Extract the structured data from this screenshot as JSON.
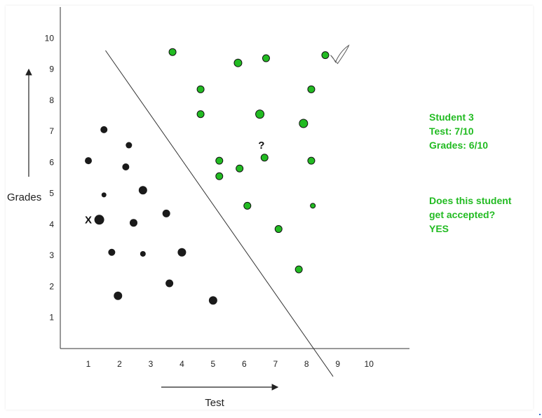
{
  "chart_data": {
    "type": "scatter",
    "title": "",
    "xlabel": "Test",
    "ylabel": "Grades",
    "xlim": [
      0.1,
      11.3
    ],
    "ylim": [
      0.0,
      11.0
    ],
    "x_ticks": [
      1,
      2,
      3,
      4,
      5,
      6,
      7,
      8,
      9,
      10
    ],
    "y_ticks": [
      1,
      2,
      3,
      4,
      5,
      6,
      7,
      8,
      9,
      10
    ],
    "grid": false,
    "colors": {
      "rejected": "#1a1a1a",
      "accepted": "#22bb22",
      "line": "#333333"
    },
    "series": [
      {
        "group": "rejected",
        "points": [
          {
            "x": 1.0,
            "y": 6.05,
            "s": 5
          },
          {
            "x": 1.5,
            "y": 7.05,
            "s": 5
          },
          {
            "x": 1.5,
            "y": 4.95,
            "s": 3.5
          },
          {
            "x": 1.35,
            "y": 4.15,
            "s": 7
          },
          {
            "x": 1.75,
            "y": 3.1,
            "s": 5
          },
          {
            "x": 1.95,
            "y": 1.7,
            "s": 6
          },
          {
            "x": 2.2,
            "y": 5.85,
            "s": 5
          },
          {
            "x": 2.3,
            "y": 6.55,
            "s": 4.5
          },
          {
            "x": 2.45,
            "y": 4.05,
            "s": 5.5
          },
          {
            "x": 2.75,
            "y": 5.1,
            "s": 6
          },
          {
            "x": 2.75,
            "y": 3.05,
            "s": 4
          },
          {
            "x": 3.5,
            "y": 4.35,
            "s": 5.5
          },
          {
            "x": 3.6,
            "y": 2.1,
            "s": 5.5
          },
          {
            "x": 4.0,
            "y": 3.1,
            "s": 6
          },
          {
            "x": 5.0,
            "y": 1.55,
            "s": 6
          }
        ]
      },
      {
        "group": "accepted",
        "points": [
          {
            "x": 3.7,
            "y": 9.55,
            "s": 5
          },
          {
            "x": 4.6,
            "y": 8.35,
            "s": 5
          },
          {
            "x": 4.6,
            "y": 7.55,
            "s": 5
          },
          {
            "x": 5.2,
            "y": 6.05,
            "s": 5
          },
          {
            "x": 5.2,
            "y": 5.55,
            "s": 5
          },
          {
            "x": 5.8,
            "y": 9.2,
            "s": 5.5
          },
          {
            "x": 5.85,
            "y": 5.8,
            "s": 5
          },
          {
            "x": 6.1,
            "y": 4.6,
            "s": 5
          },
          {
            "x": 6.5,
            "y": 7.55,
            "s": 6
          },
          {
            "x": 6.7,
            "y": 9.35,
            "s": 5
          },
          {
            "x": 6.65,
            "y": 6.15,
            "s": 5
          },
          {
            "x": 7.1,
            "y": 3.85,
            "s": 5
          },
          {
            "x": 7.75,
            "y": 2.55,
            "s": 5
          },
          {
            "x": 7.9,
            "y": 7.25,
            "s": 6
          },
          {
            "x": 8.15,
            "y": 8.35,
            "s": 5
          },
          {
            "x": 8.15,
            "y": 6.05,
            "s": 5
          },
          {
            "x": 8.2,
            "y": 4.6,
            "s": 3.5
          },
          {
            "x": 8.6,
            "y": 9.45,
            "s": 5
          }
        ]
      }
    ],
    "decision_boundary": {
      "from": [
        1.55,
        9.6
      ],
      "to": [
        8.85,
        -0.9
      ]
    },
    "annotations": [
      {
        "text": "X",
        "x": 1.0,
        "y": 4.15
      },
      {
        "text": "?",
        "x": 6.55,
        "y": 6.55
      },
      {
        "text": "✓",
        "x": 8.95,
        "y": 9.45
      }
    ]
  },
  "annotation_panel": {
    "student_lines": [
      "Student 3",
      "Test: 7/10",
      "Grades: 6/10"
    ],
    "question_lines": [
      "Does this student",
      "get accepted?",
      "YES"
    ]
  }
}
